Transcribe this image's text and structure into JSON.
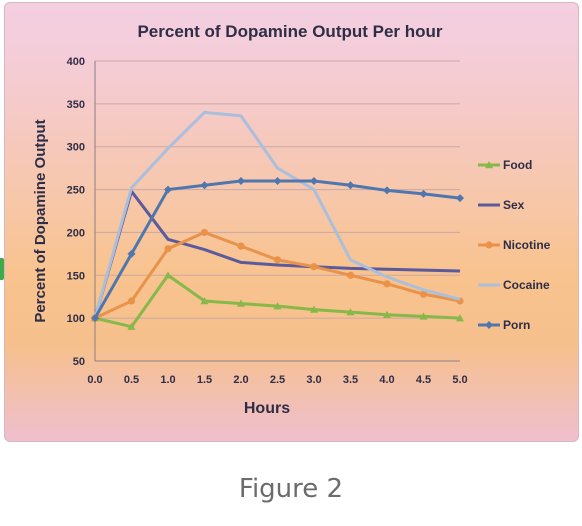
{
  "caption": "Figure 2",
  "chart_data": {
    "type": "line",
    "title": "Percent of Dopamine Output Per hour",
    "xlabel": "Hours",
    "ylabel": "Percent of Dopamine Output",
    "x": [
      0.0,
      0.5,
      1.0,
      1.5,
      2.0,
      2.5,
      3.0,
      3.5,
      4.0,
      4.5,
      5.0
    ],
    "x_tick_labels": [
      "0.0",
      "0.5",
      "1.0",
      "1.5",
      "2.0",
      "2.5",
      "3.0",
      "3.5",
      "4.0",
      "4.5",
      "5.0"
    ],
    "ylim": [
      50,
      400
    ],
    "y_ticks": [
      50,
      100,
      150,
      200,
      250,
      300,
      350,
      400
    ],
    "grid": "horizontal",
    "legend_position": "right",
    "series": [
      {
        "name": "Food",
        "color": "#86b84a",
        "marker": "triangle",
        "values": [
          100,
          90,
          150,
          120,
          117,
          114,
          110,
          107,
          104,
          102,
          100
        ]
      },
      {
        "name": "Sex",
        "color": "#5b5a9c",
        "marker": "none",
        "values": [
          100,
          248,
          192,
          180,
          165,
          162,
          160,
          158,
          157,
          156,
          155
        ]
      },
      {
        "name": "Nicotine",
        "color": "#e8924a",
        "marker": "circle",
        "values": [
          100,
          120,
          181,
          200,
          184,
          168,
          160,
          150,
          140,
          128,
          120
        ]
      },
      {
        "name": "Cocaine",
        "color": "#a9bfdc",
        "marker": "none",
        "values": [
          100,
          252,
          298,
          340,
          336,
          275,
          250,
          168,
          148,
          133,
          122
        ]
      },
      {
        "name": "Porn",
        "color": "#4f76ad",
        "marker": "diamond",
        "values": [
          100,
          175,
          250,
          255,
          260,
          260,
          260,
          255,
          249,
          245,
          240
        ]
      }
    ]
  }
}
